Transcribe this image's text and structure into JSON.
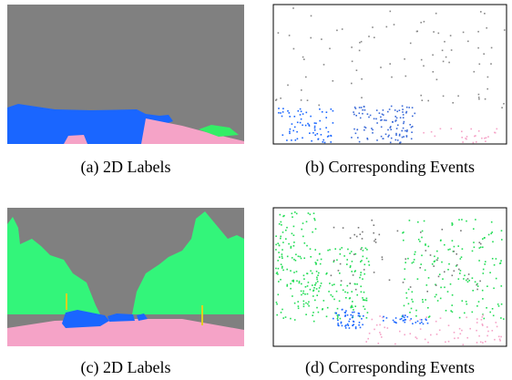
{
  "panels": [
    {
      "caption": "(a) 2D Labels"
    },
    {
      "caption": "(b) Corresponding Events"
    },
    {
      "caption": "(c) 2D Labels"
    },
    {
      "caption": "(d) Corresponding Events"
    }
  ]
}
